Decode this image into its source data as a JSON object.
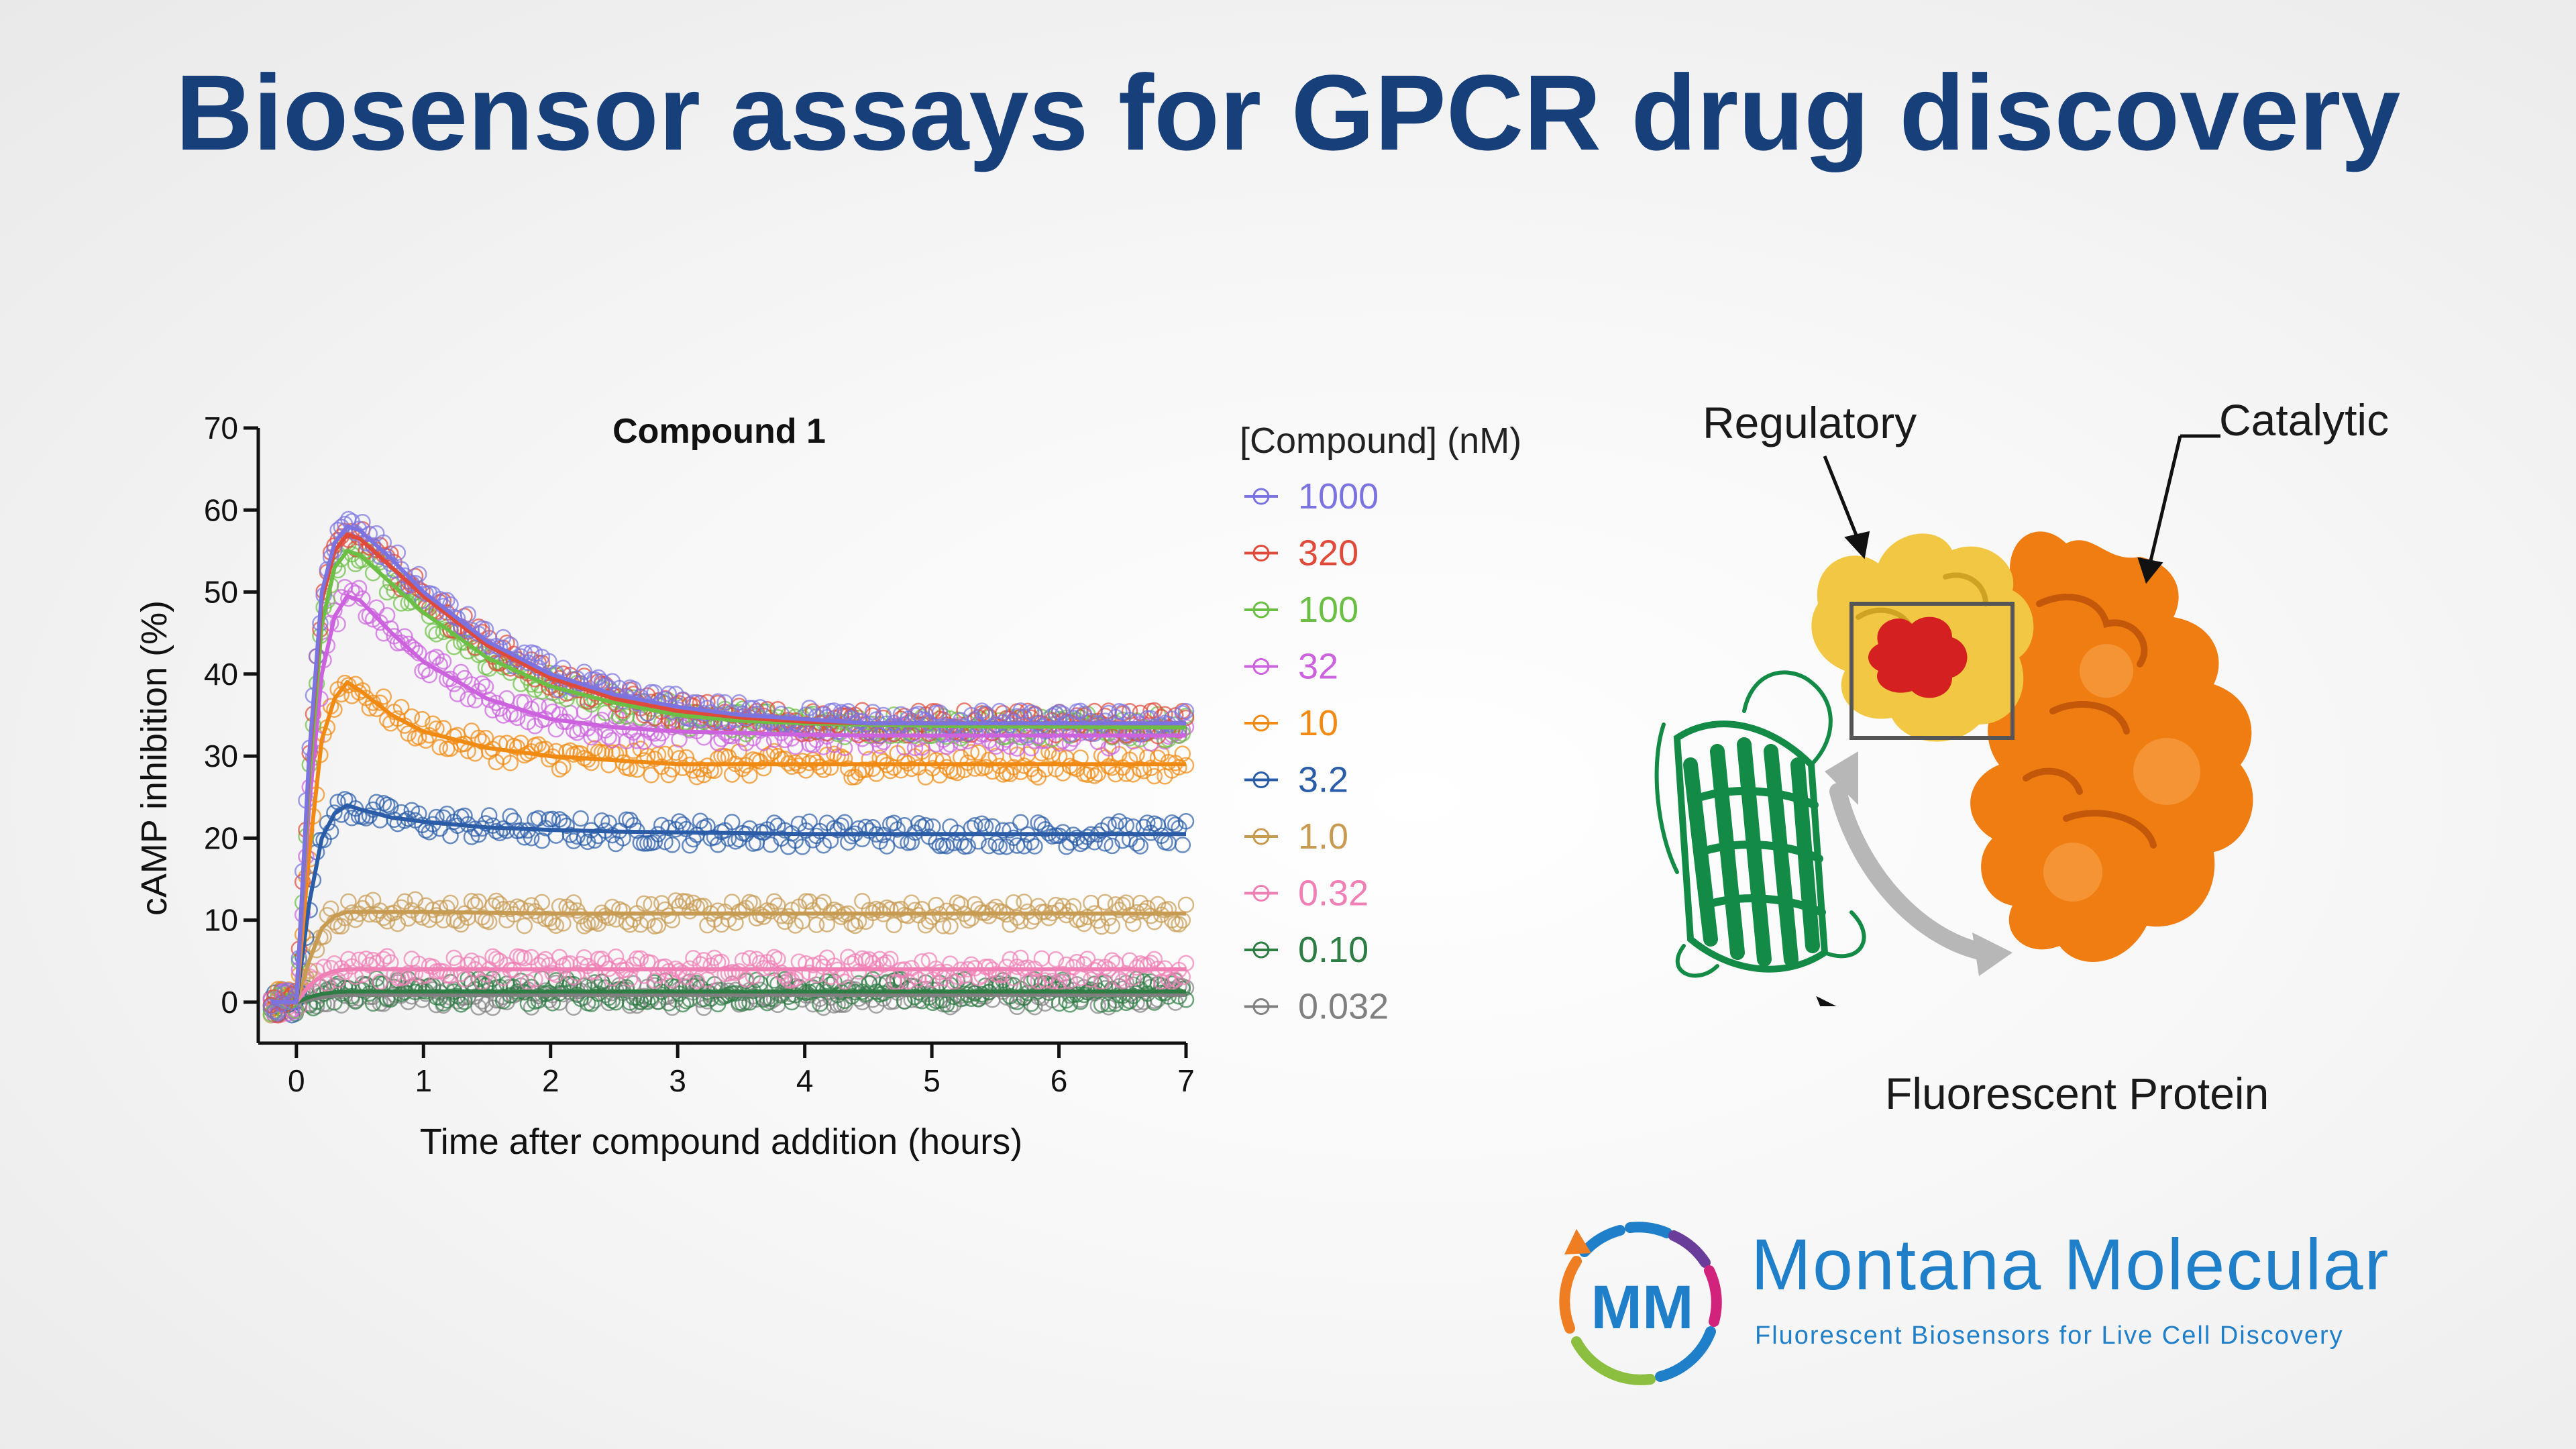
{
  "slide": {
    "title": "Biosensor assays for GPCR drug discovery"
  },
  "chart_data": {
    "type": "scatter",
    "title": "Compound 1",
    "xlabel": "Time after compound addition (hours)",
    "ylabel": "cAMP inhibition (%)",
    "xlim": [
      -0.3,
      7
    ],
    "ylim": [
      -5,
      70
    ],
    "xticks": [
      0,
      1,
      2,
      3,
      4,
      5,
      6,
      7
    ],
    "yticks": [
      0,
      10,
      20,
      30,
      40,
      50,
      60,
      70
    ],
    "grid": false,
    "legend_title": "[Compound] (nM)",
    "legend_position": "right",
    "x": [
      -0.2,
      0,
      0.1,
      0.2,
      0.3,
      0.4,
      0.5,
      0.75,
      1,
      1.5,
      2,
      2.5,
      3,
      3.5,
      4,
      4.5,
      5,
      5.5,
      6,
      6.5,
      7
    ],
    "series": [
      {
        "name": "1000",
        "color": "#7b74e0",
        "values": [
          0,
          0,
          30,
          50,
          56,
          58,
          57.5,
          54,
          50,
          44,
          40,
          37.5,
          36,
          35,
          34.5,
          34,
          34,
          34,
          34,
          34,
          34
        ]
      },
      {
        "name": "320",
        "color": "#e04a3a",
        "values": [
          0,
          0,
          29,
          49,
          55,
          57,
          56.5,
          53,
          49.5,
          43.5,
          39.5,
          37,
          35.5,
          34.7,
          34.2,
          34,
          34,
          34,
          34,
          34,
          34
        ]
      },
      {
        "name": "100",
        "color": "#6bbf45",
        "values": [
          0,
          0,
          27,
          46,
          53,
          55,
          54.5,
          51,
          47.5,
          42,
          38.5,
          36.5,
          35,
          34.3,
          34,
          33.8,
          33.7,
          33.6,
          33.6,
          33.5,
          33.5
        ]
      },
      {
        "name": "32",
        "color": "#cc62dd",
        "values": [
          0,
          0,
          24,
          40,
          47,
          49.5,
          49,
          45,
          41.5,
          37,
          34.5,
          33.5,
          33,
          32.8,
          32.6,
          32.5,
          32.5,
          32.5,
          32.5,
          32.5,
          32.5
        ]
      },
      {
        "name": "10",
        "color": "#f08a12",
        "values": [
          0,
          0,
          18,
          32,
          37,
          39,
          38,
          35,
          33,
          31,
          30,
          29.5,
          29,
          29,
          29,
          29,
          29,
          29,
          29,
          29,
          29
        ]
      },
      {
        "name": "3.2",
        "color": "#2a5ca8",
        "values": [
          0,
          0,
          12,
          20,
          23,
          24,
          23.5,
          22.5,
          22,
          21.3,
          21,
          20.8,
          20.7,
          20.6,
          20.5,
          20.5,
          20.5,
          20.5,
          20.5,
          20.5,
          20.5
        ]
      },
      {
        "name": "1.0",
        "color": "#c79b52",
        "values": [
          0,
          0,
          5,
          9,
          10.5,
          11,
          11,
          11,
          11,
          10.9,
          10.8,
          10.8,
          10.8,
          10.8,
          10.8,
          10.8,
          10.8,
          10.8,
          10.8,
          10.8,
          10.8
        ]
      },
      {
        "name": "0.32",
        "color": "#ef7fb5",
        "values": [
          0,
          0,
          2,
          3.2,
          3.8,
          4,
          4,
          4,
          4,
          4,
          4,
          4,
          4,
          4,
          4,
          4,
          4,
          4,
          4,
          4,
          4
        ]
      },
      {
        "name": "0.10",
        "color": "#2e7d45",
        "values": [
          0,
          0,
          0.6,
          1,
          1.2,
          1.3,
          1.3,
          1.3,
          1.3,
          1.3,
          1.3,
          1.3,
          1.3,
          1.3,
          1.3,
          1.3,
          1.3,
          1.3,
          1.3,
          1.3,
          1.3
        ]
      },
      {
        "name": "0.032",
        "color": "#808080",
        "values": [
          0,
          0,
          0.3,
          0.6,
          0.8,
          0.9,
          0.9,
          0.9,
          0.9,
          0.9,
          0.9,
          0.9,
          0.9,
          0.9,
          0.9,
          0.9,
          0.9,
          0.9,
          0.9,
          0.9,
          0.9
        ]
      }
    ]
  },
  "diagram": {
    "regulatory": "Regulatory",
    "catalytic": "Catalytic",
    "fluorescent": "Fluorescent Protein",
    "colors": {
      "regulatory": "#f2c744",
      "catalytic": "#f07d12",
      "fluorescent": "#138a45",
      "binding": "#d42020"
    }
  },
  "logo": {
    "mark": "MM",
    "name": "Montana Molecular",
    "tagline": "Fluorescent Biosensors for Live Cell Discovery",
    "colors": {
      "blue": "#1f7fc8",
      "orange": "#ef7d22",
      "green": "#8cbf3f",
      "purple": "#6a3d9a",
      "magenta": "#d1227c"
    }
  }
}
